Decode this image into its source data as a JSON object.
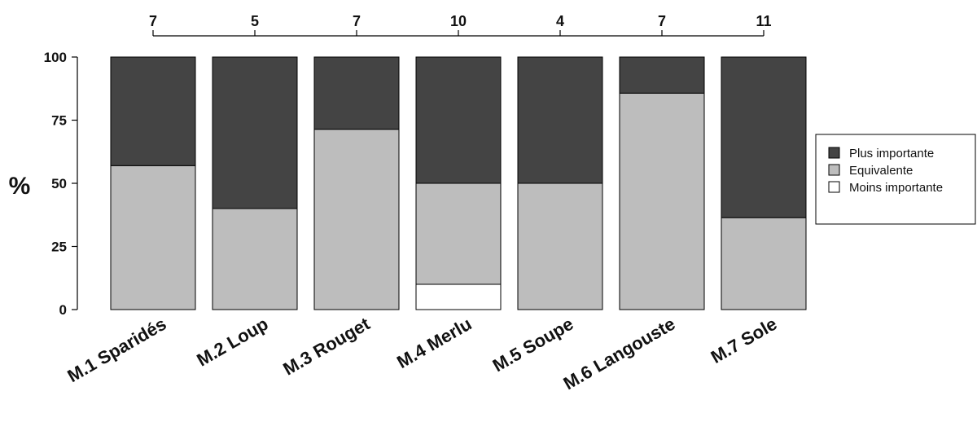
{
  "chart_data": {
    "type": "bar",
    "stacked": true,
    "categories": [
      "M.1 Sparidés",
      "M.2 Loup",
      "M.3 Rouget",
      "M.4 Merlu",
      "M.5 Soupe",
      "M.6 Langouste",
      "M.7 Sole"
    ],
    "counts": [
      "7",
      "5",
      "7",
      "10",
      "4",
      "7",
      "11"
    ],
    "series": [
      {
        "name": "Moins importante",
        "color": "#ffffff",
        "values": [
          0,
          0,
          0,
          10,
          0,
          0,
          0
        ]
      },
      {
        "name": "Equivalente",
        "color": "#bdbdbd",
        "values": [
          57,
          40,
          71.4,
          40,
          50,
          85.7,
          36.4
        ]
      },
      {
        "name": "Plus importante",
        "color": "#444444",
        "values": [
          43,
          60,
          28.6,
          50,
          50,
          14.3,
          63.6
        ]
      }
    ],
    "legend_order": [
      "Plus importante",
      "Equivalente",
      "Moins importante"
    ],
    "legend_position": "right",
    "ylabel": "%",
    "ylim": [
      0,
      100
    ],
    "yticks": [
      "0",
      "25",
      "50",
      "75",
      "100"
    ],
    "grid": false
  }
}
